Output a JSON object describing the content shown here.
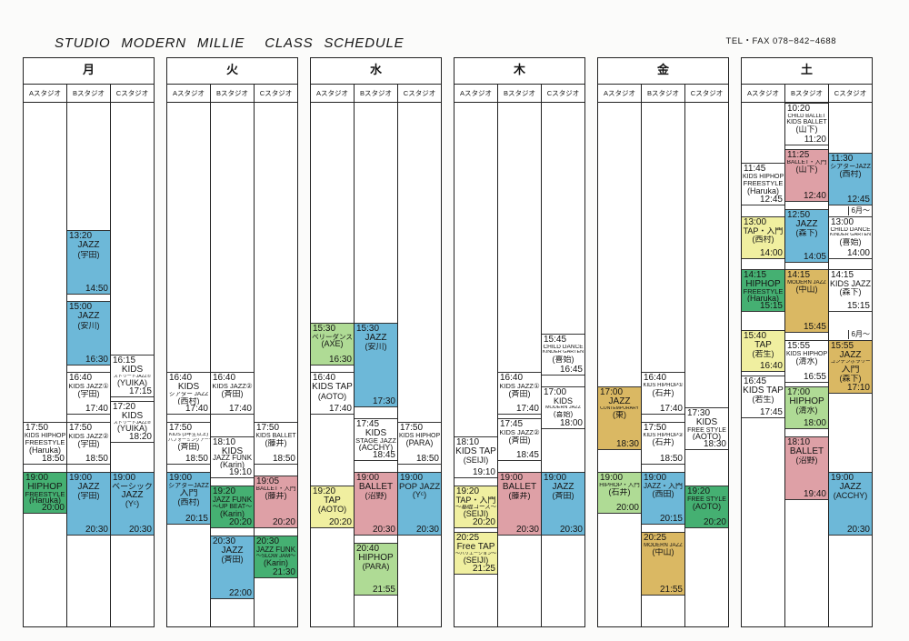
{
  "header": {
    "studio_name": "STUDIO MODERN MILLIE",
    "schedule_label": "CLASS SCHEDULE",
    "contact": "TEL・FAX 078−842−4688"
  },
  "studios": [
    "Aスタジオ",
    "Bスタジオ",
    "Cスタジオ"
  ],
  "palette": {
    "white": "#ffffff",
    "blue": "#6db8d8",
    "green": "#45b072",
    "lightgreen": "#afdb95",
    "pink": "#dea0a6",
    "yellow": "#f0efa0",
    "gold": "#dab863"
  },
  "days": [
    {
      "name": "月",
      "columns": [
        [
          {
            "start": "17:50",
            "end": "18:50",
            "title": [
              "KIDS HIPHOP",
              "FREESTYLE"
            ],
            "teacher": "(Haruka)",
            "color": "white"
          },
          {
            "start": "19:00",
            "end": "20:00",
            "title": [
              "HIPHOP",
              "FREESTYLE"
            ],
            "teacher": "(Haruka)",
            "color": "green"
          }
        ],
        [
          {
            "start": "13:20",
            "end": "14:50",
            "title": [
              "JAZZ"
            ],
            "teacher": "(宇田)",
            "color": "blue"
          },
          {
            "start": "15:00",
            "end": "16:30",
            "title": [
              "JAZZ"
            ],
            "teacher": "(安川)",
            "color": "blue"
          },
          {
            "start": "16:40",
            "end": "17:40",
            "title": [
              "KIDS JAZZ①"
            ],
            "teacher": "(宇田)",
            "color": "white"
          },
          {
            "start": "17:50",
            "end": "18:50",
            "title": [
              "KIDS JAZZ②"
            ],
            "teacher": "(宇田)",
            "color": "white"
          },
          {
            "start": "19:00",
            "end": "20:30",
            "title": [
              "JAZZ"
            ],
            "teacher": "(宇田)",
            "color": "blue"
          }
        ],
        [
          {
            "start": "16:15",
            "end": "17:15",
            "title": [
              "KIDS",
              "ストリートJAZZ①"
            ],
            "teacher": "(YUIKA)",
            "color": "white"
          },
          {
            "start": "17:20",
            "end": "18:20",
            "title": [
              "KIDS",
              "ストリートJAZZ②"
            ],
            "teacher": "(YUIKA)",
            "color": "white"
          },
          {
            "start": "19:00",
            "end": "20:30",
            "title": [
              "ベーシック",
              "JAZZ"
            ],
            "teacher": "(Yᶜ)",
            "color": "blue"
          }
        ]
      ]
    },
    {
      "name": "火",
      "columns": [
        [
          {
            "start": "16:40",
            "end": "17:40",
            "title": [
              "KIDS",
              "シアター JAZZ"
            ],
            "teacher": "(西村)",
            "color": "white"
          },
          {
            "start": "17:50",
            "end": "18:50",
            "title": [
              "KIDS (3年生以上)",
              "パフォーミングアーツ"
            ],
            "teacher": "(斉田)",
            "color": "white"
          },
          {
            "start": "19:00",
            "end": "20:15",
            "title": [
              "シアターJAZZ",
              "入門"
            ],
            "teacher": "(西村)",
            "color": "blue"
          }
        ],
        [
          {
            "start": "16:40",
            "end": "17:40",
            "title": [
              "KIDS JAZZ②"
            ],
            "teacher": "(斉田)",
            "color": "white"
          },
          {
            "start": "18:10",
            "end": "19:10",
            "title": [
              "KIDS",
              "JAZZ FUNK"
            ],
            "teacher": "(Karin)",
            "color": "white"
          },
          {
            "start": "19:20",
            "end": "20:20",
            "title": [
              "JAZZ FUNK",
              "〜UP BEAT〜"
            ],
            "teacher": "(Karin)",
            "color": "green"
          },
          {
            "start": "20:30",
            "end": "22:00",
            "title": [
              "JAZZ"
            ],
            "teacher": "(斉田)",
            "color": "blue"
          }
        ],
        [
          {
            "start": "17:50",
            "end": "18:50",
            "title": [
              "KIDS BALLET"
            ],
            "teacher": "(藤井)",
            "color": "white"
          },
          {
            "start": "19:05",
            "end": "20:20",
            "title": [
              "BALLET・入門"
            ],
            "teacher": "(藤井)",
            "color": "pink"
          },
          {
            "start": "20:30",
            "end": "21:30",
            "title": [
              "JAZZ FUNK",
              "〜SLOW JAM〜"
            ],
            "teacher": "(Karin)",
            "color": "green"
          }
        ]
      ]
    },
    {
      "name": "水",
      "columns": [
        [
          {
            "start": "15:30",
            "end": "16:30",
            "title": [
              "ベリーダンス"
            ],
            "teacher": "(AXE)",
            "color": "lightgreen"
          },
          {
            "start": "16:40",
            "end": "17:40",
            "title": [
              "KIDS TAP"
            ],
            "teacher": "(AOTO)",
            "color": "white"
          },
          {
            "start": "19:20",
            "end": "20:20",
            "title": [
              "TAP"
            ],
            "teacher": "(AOTO)",
            "color": "yellow"
          }
        ],
        [
          {
            "start": "15:30",
            "end": "17:30",
            "title": [
              "JAZZ"
            ],
            "teacher": "(安川)",
            "color": "blue"
          },
          {
            "start": "17:45",
            "end": "18:45",
            "title": [
              "KIDS",
              "STAGE JAZZ"
            ],
            "teacher": "(ACCHY)",
            "color": "white"
          },
          {
            "start": "19:00",
            "end": "20:30",
            "title": [
              "BALLET"
            ],
            "teacher": "(沼野)",
            "color": "pink"
          },
          {
            "start": "20:40",
            "end": "21:55",
            "title": [
              "HIPHOP"
            ],
            "teacher": "(PARA)",
            "color": "lightgreen"
          }
        ],
        [
          {
            "start": "17:50",
            "end": "18:50",
            "title": [
              "KIDS HIPHOP"
            ],
            "teacher": "(PARA)",
            "color": "white"
          },
          {
            "start": "19:00",
            "end": "20:30",
            "title": [
              "POP JAZZ"
            ],
            "teacher": "(Yᶜ)",
            "color": "blue"
          }
        ]
      ]
    },
    {
      "name": "木",
      "columns": [
        [
          {
            "start": "18:10",
            "end": "19:10",
            "title": [
              "KIDS TAP"
            ],
            "teacher": "(SEIJI)",
            "color": "white"
          },
          {
            "start": "19:20",
            "end": "20:20",
            "title": [
              "TAP・入門",
              "〜基礎コース〜"
            ],
            "teacher": "(SEIJI)",
            "color": "yellow"
          },
          {
            "start": "20:25",
            "end": "21:25",
            "title": [
              "Free TAP",
              "〜バリエーション〜"
            ],
            "teacher": "(SEIJI)",
            "color": "yellow"
          }
        ],
        [
          {
            "start": "16:40",
            "end": "17:40",
            "title": [
              "KIDS JAZZ①"
            ],
            "teacher": "(斉田)",
            "color": "white"
          },
          {
            "start": "17:45",
            "end": "18:45",
            "title": [
              "KIDS JAZZ②"
            ],
            "teacher": "(斉田)",
            "color": "white"
          },
          {
            "start": "19:00",
            "end": "20:30",
            "title": [
              "BALLET"
            ],
            "teacher": "(藤井)",
            "color": "pink"
          }
        ],
        [
          {
            "start": "15:45",
            "end": "16:45",
            "title": [
              "CHILD DANCE",
              "KINDER GARTEN"
            ],
            "teacher": "(喜始)",
            "color": "white"
          },
          {
            "start": "17:00",
            "end": "18:00",
            "title": [
              "KIDS",
              "MODERN JAZZ"
            ],
            "teacher": "(喜始)",
            "color": "white"
          },
          {
            "start": "19:00",
            "end": "20:30",
            "title": [
              "JAZZ"
            ],
            "teacher": "(斉田)",
            "color": "blue"
          }
        ]
      ]
    },
    {
      "name": "金",
      "columns": [
        [
          {
            "start": "17:00",
            "end": "18:30",
            "title": [
              "JAZZ",
              "CONTEMPORARY"
            ],
            "teacher": "(東)",
            "color": "gold"
          },
          {
            "start": "19:00",
            "end": "20:00",
            "title": [
              "HIPHOP・入門"
            ],
            "teacher": "(石井)",
            "color": "lightgreen"
          }
        ],
        [
          {
            "start": "16:40",
            "end": "17:40",
            "title": [
              "KIDS HIPHOP①"
            ],
            "teacher": "(石井)",
            "color": "white"
          },
          {
            "start": "17:50",
            "end": "18:50",
            "title": [
              "KIDS HIPHOP②"
            ],
            "teacher": "(石井)",
            "color": "white"
          },
          {
            "start": "19:00",
            "end": "20:15",
            "title": [
              "JAZZ・入門"
            ],
            "teacher": "(西田)",
            "color": "blue"
          },
          {
            "start": "20:25",
            "end": "21:55",
            "title": [
              "MODERN JAZZ"
            ],
            "teacher": "(中山)",
            "color": "gold"
          }
        ],
        [
          {
            "start": "17:30",
            "end": "18:30",
            "title": [
              "KIDS",
              "FREE STYLE"
            ],
            "teacher": "(AOTO)",
            "color": "white"
          },
          {
            "start": "19:20",
            "end": "20:20",
            "title": [
              "FREE STYLE"
            ],
            "teacher": "(AOTO)",
            "color": "green"
          }
        ]
      ]
    },
    {
      "name": "土",
      "columns": [
        [
          {
            "start": "11:45",
            "end": "12:45",
            "title": [
              "KIDS HIPHOP",
              "FREESTYLE"
            ],
            "teacher": "(Haruka)",
            "color": "white"
          },
          {
            "start": "13:00",
            "end": "14:00",
            "title": [
              "TAP・入門"
            ],
            "teacher": "(西村)",
            "color": "yellow"
          },
          {
            "start": "14:15",
            "end": "15:15",
            "title": [
              "HIPHOP",
              "FREESTYLE"
            ],
            "teacher": "(Haruka)",
            "color": "green"
          },
          {
            "start": "15:40",
            "end": "16:40",
            "title": [
              "TAP"
            ],
            "teacher": "(若生)",
            "color": "yellow"
          },
          {
            "start": "16:45",
            "end": "17:45",
            "title": [
              "KIDS TAP"
            ],
            "teacher": "(若生)",
            "color": "white"
          }
        ],
        [
          {
            "start": "10:20",
            "end": "11:20",
            "title": [
              "CHILD BALLET",
              "KIDS BALLET"
            ],
            "teacher": "(山下)",
            "color": "white"
          },
          {
            "start": "11:25",
            "end": "12:40",
            "title": [
              "BALLET・入門"
            ],
            "teacher": "(山下)",
            "color": "pink"
          },
          {
            "start": "12:50",
            "end": "14:05",
            "title": [
              "JAZZ"
            ],
            "teacher": "(森下)",
            "color": "blue"
          },
          {
            "start": "14:15",
            "end": "15:45",
            "title": [
              "MODERN JAZZ"
            ],
            "teacher": "(中山)",
            "color": "gold"
          },
          {
            "start": "15:55",
            "end": "16:55",
            "title": [
              "KIDS HIPHOP"
            ],
            "teacher": "(清水)",
            "color": "white"
          },
          {
            "start": "17:00",
            "end": "18:00",
            "title": [
              "HIPHOP"
            ],
            "teacher": "(清水)",
            "color": "lightgreen"
          },
          {
            "start": "18:10",
            "end": "19:40",
            "title": [
              "BALLET"
            ],
            "teacher": "(沼野)",
            "color": "pink"
          }
        ],
        [
          {
            "start": "11:30",
            "end": "12:45",
            "title": [
              "シアターJAZZ"
            ],
            "teacher": "(西村)",
            "color": "blue"
          },
          {
            "start": "13:00",
            "end": "14:00",
            "title": [
              "CHILD DANCE",
              "KINDER GARTEN"
            ],
            "teacher": "(喜始)",
            "color": "white",
            "note": "6月〜"
          },
          {
            "start": "14:15",
            "end": "15:15",
            "title": [
              "KIDS JAZZ"
            ],
            "teacher": "(森下)",
            "color": "white"
          },
          {
            "start": "15:55",
            "end": "17:10",
            "title": [
              "JAZZ",
              "コンテンポラリー",
              "入門"
            ],
            "teacher": "(森下)",
            "color": "gold",
            "note": "6月〜"
          },
          {
            "start": "19:00",
            "end": "20:30",
            "title": [
              "JAZZ"
            ],
            "teacher": "(ACCHY)",
            "color": "blue"
          }
        ]
      ]
    }
  ]
}
